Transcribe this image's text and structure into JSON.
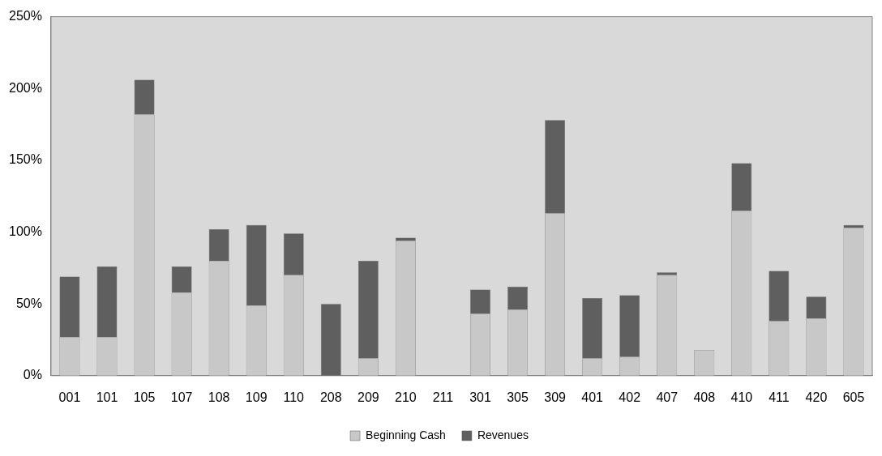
{
  "chart_data": {
    "type": "bar",
    "stacked": true,
    "categories": [
      "001",
      "101",
      "105",
      "107",
      "108",
      "109",
      "110",
      "208",
      "209",
      "210",
      "211",
      "301",
      "305",
      "309",
      "401",
      "402",
      "407",
      "408",
      "410",
      "411",
      "420",
      "605"
    ],
    "series": [
      {
        "name": "Beginning Cash",
        "color": "#c8c8c8",
        "values": [
          27,
          27,
          182,
          58,
          80,
          49,
          70,
          0,
          12,
          94,
          0,
          43,
          46,
          113,
          12,
          13,
          70,
          18,
          115,
          38,
          40,
          103
        ]
      },
      {
        "name": "Revenues",
        "color": "#5f5f5f",
        "values": [
          42,
          49,
          24,
          18,
          22,
          56,
          29,
          50,
          68,
          2,
          0,
          17,
          16,
          65,
          42,
          43,
          2,
          0,
          33,
          35,
          15,
          2
        ]
      }
    ],
    "ylim": [
      0,
      250
    ],
    "yticks": [
      {
        "value": 0,
        "label": "0%"
      },
      {
        "value": 50,
        "label": "50%"
      },
      {
        "value": 100,
        "label": "100%"
      },
      {
        "value": 150,
        "label": "150%"
      },
      {
        "value": 200,
        "label": "200%"
      },
      {
        "value": 250,
        "label": "250%"
      }
    ],
    "grid": false,
    "legend": "bottom"
  }
}
